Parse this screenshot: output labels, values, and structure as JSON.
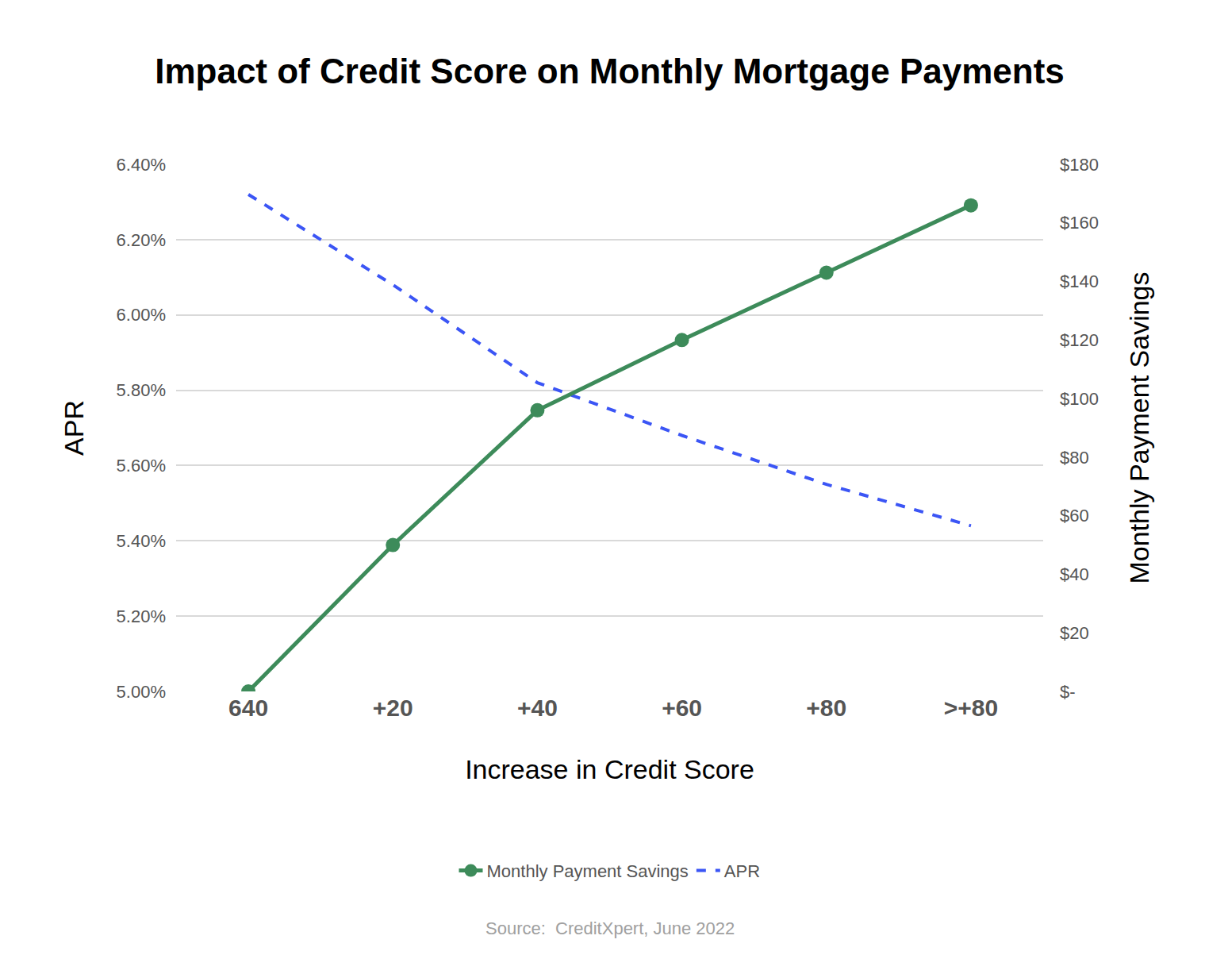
{
  "chart_data": {
    "type": "line",
    "title": "Impact of Credit Score on Monthly Mortgage Payments",
    "x_label": "Increase in Credit Score",
    "y_label": "APR",
    "y2_label": "Monthly Payment Savings",
    "source": "Source:  CreditXpert, June 2022",
    "categories": [
      "640",
      "+20",
      "+40",
      "+60",
      "+80",
      ">+80"
    ],
    "series": [
      {
        "name": "Monthly Payment Savings",
        "color": "#3d8b5a",
        "marker": "circle",
        "line_style": "solid",
        "axis": "y2",
        "values": [
          0,
          50,
          96,
          120,
          143,
          166
        ]
      },
      {
        "name": "APR",
        "color": "#3b55f5",
        "marker": "none",
        "line_style": "dashed",
        "axis": "y",
        "values": [
          6.32,
          6.08,
          5.82,
          5.68,
          5.55,
          5.44
        ]
      }
    ],
    "ylim": [
      5.0,
      6.4
    ],
    "yticks": [
      {
        "value": 5.0,
        "label": "5.00%"
      },
      {
        "value": 5.2,
        "label": "5.20%"
      },
      {
        "value": 5.4,
        "label": "5.40%"
      },
      {
        "value": 5.6,
        "label": "5.60%"
      },
      {
        "value": 5.8,
        "label": "5.80%"
      },
      {
        "value": 6.0,
        "label": "6.00%"
      },
      {
        "value": 6.2,
        "label": "6.20%"
      },
      {
        "value": 6.4,
        "label": "6.40%"
      }
    ],
    "y2lim": [
      0,
      180
    ],
    "y2ticks": [
      {
        "value": 0,
        "label": "$-"
      },
      {
        "value": 20,
        "label": "$20"
      },
      {
        "value": 40,
        "label": "$40"
      },
      {
        "value": 60,
        "label": "$60"
      },
      {
        "value": 80,
        "label": "$80"
      },
      {
        "value": 100,
        "label": "$100"
      },
      {
        "value": 120,
        "label": "$120"
      },
      {
        "value": 140,
        "label": "$140"
      },
      {
        "value": 160,
        "label": "$160"
      },
      {
        "value": 180,
        "label": "$180"
      }
    ],
    "grid": true,
    "legend": "bottom"
  }
}
